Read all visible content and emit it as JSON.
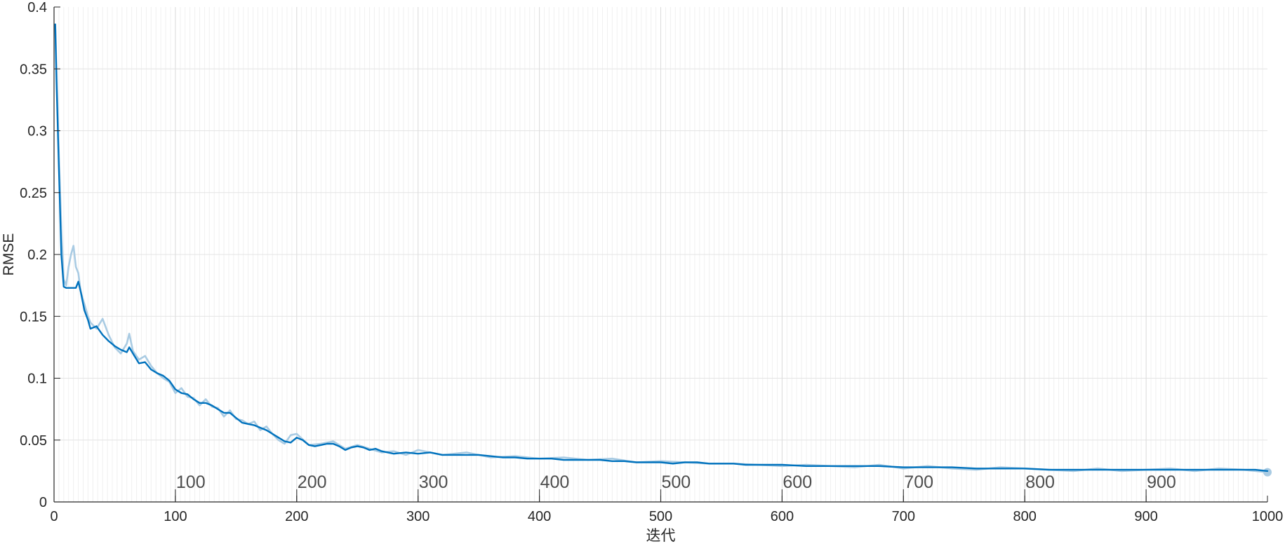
{
  "chart_data": {
    "type": "line",
    "title": "",
    "xlabel": "迭代",
    "ylabel": "RMSE",
    "xlim": [
      0,
      1000
    ],
    "ylim": [
      0,
      0.4
    ],
    "xticks": [
      "0",
      "100",
      "200",
      "300",
      "400",
      "500",
      "600",
      "700",
      "800",
      "900",
      "1000"
    ],
    "yticks": [
      "0",
      "0.05",
      "0.1",
      "0.15",
      "0.2",
      "0.25",
      "0.3",
      "0.35",
      "0.4"
    ],
    "epoch_markers": [
      100,
      200,
      300,
      400,
      500,
      600,
      700,
      800,
      900
    ],
    "epoch_labels": [
      "100",
      "200",
      "300",
      "400",
      "500",
      "600",
      "700",
      "800",
      "900"
    ],
    "grid": true,
    "minor_grid_x_every_iterations": 4,
    "colors": {
      "smoothed": "#0072bd",
      "raw": "#a9cbe3",
      "grid": "#e4e4e4",
      "axis": "#262626"
    },
    "series": [
      {
        "role": "smoothed",
        "x": [
          1,
          2,
          4,
          6,
          8,
          10,
          12,
          15,
          18,
          20,
          22,
          25,
          28,
          30,
          35,
          40,
          45,
          50,
          55,
          60,
          62,
          65,
          70,
          75,
          80,
          85,
          90,
          95,
          100,
          105,
          110,
          115,
          120,
          125,
          130,
          135,
          140,
          145,
          150,
          155,
          160,
          165,
          170,
          175,
          180,
          185,
          190,
          195,
          200,
          205,
          210,
          215,
          220,
          225,
          230,
          235,
          240,
          245,
          250,
          255,
          260,
          265,
          270,
          275,
          280,
          290,
          300,
          310,
          320,
          330,
          340,
          350,
          360,
          370,
          380,
          390,
          400,
          410,
          420,
          430,
          440,
          450,
          460,
          470,
          480,
          490,
          500,
          510,
          520,
          530,
          540,
          550,
          560,
          570,
          580,
          590,
          600,
          620,
          640,
          660,
          680,
          700,
          720,
          740,
          760,
          780,
          800,
          820,
          840,
          860,
          880,
          900,
          920,
          940,
          960,
          980,
          990,
          1000
        ],
        "y": [
          0.386,
          0.34,
          0.27,
          0.2,
          0.174,
          0.173,
          0.173,
          0.173,
          0.173,
          0.178,
          0.17,
          0.155,
          0.147,
          0.14,
          0.142,
          0.135,
          0.13,
          0.126,
          0.123,
          0.121,
          0.125,
          0.12,
          0.112,
          0.113,
          0.107,
          0.104,
          0.102,
          0.098,
          0.091,
          0.088,
          0.087,
          0.083,
          0.08,
          0.08,
          0.078,
          0.075,
          0.072,
          0.072,
          0.068,
          0.064,
          0.063,
          0.062,
          0.06,
          0.058,
          0.055,
          0.052,
          0.049,
          0.048,
          0.052,
          0.05,
          0.046,
          0.045,
          0.046,
          0.047,
          0.047,
          0.045,
          0.042,
          0.044,
          0.045,
          0.044,
          0.042,
          0.043,
          0.041,
          0.04,
          0.039,
          0.04,
          0.039,
          0.04,
          0.038,
          0.038,
          0.038,
          0.038,
          0.037,
          0.036,
          0.036,
          0.035,
          0.035,
          0.035,
          0.034,
          0.034,
          0.034,
          0.034,
          0.033,
          0.033,
          0.032,
          0.032,
          0.032,
          0.031,
          0.032,
          0.032,
          0.031,
          0.031,
          0.031,
          0.03,
          0.03,
          0.03,
          0.03,
          0.029,
          0.029,
          0.029,
          0.029,
          0.028,
          0.028,
          0.028,
          0.027,
          0.027,
          0.027,
          0.026,
          0.026,
          0.026,
          0.026,
          0.026,
          0.026,
          0.026,
          0.026,
          0.026,
          0.026,
          0.025
        ]
      },
      {
        "role": "raw",
        "x": [
          1,
          2,
          4,
          6,
          8,
          10,
          12,
          14,
          16,
          18,
          20,
          22,
          25,
          28,
          30,
          35,
          40,
          45,
          50,
          55,
          60,
          62,
          65,
          70,
          75,
          80,
          85,
          90,
          95,
          100,
          105,
          110,
          115,
          120,
          125,
          130,
          135,
          140,
          145,
          150,
          155,
          160,
          165,
          170,
          175,
          180,
          185,
          190,
          195,
          200,
          210,
          220,
          230,
          240,
          250,
          260,
          270,
          280,
          290,
          300,
          320,
          340,
          360,
          380,
          400,
          420,
          440,
          460,
          480,
          500,
          520,
          540,
          560,
          580,
          600,
          620,
          640,
          660,
          680,
          700,
          720,
          740,
          760,
          780,
          800,
          820,
          840,
          860,
          880,
          900,
          920,
          940,
          960,
          980,
          1000
        ],
        "y": [
          0.385,
          0.35,
          0.28,
          0.22,
          0.18,
          0.175,
          0.19,
          0.2,
          0.207,
          0.19,
          0.185,
          0.17,
          0.16,
          0.15,
          0.145,
          0.14,
          0.148,
          0.135,
          0.125,
          0.12,
          0.128,
          0.136,
          0.122,
          0.115,
          0.118,
          0.11,
          0.104,
          0.1,
          0.097,
          0.088,
          0.092,
          0.085,
          0.084,
          0.078,
          0.083,
          0.077,
          0.076,
          0.069,
          0.074,
          0.067,
          0.066,
          0.063,
          0.065,
          0.058,
          0.061,
          0.055,
          0.05,
          0.047,
          0.054,
          0.055,
          0.046,
          0.047,
          0.049,
          0.043,
          0.046,
          0.043,
          0.04,
          0.041,
          0.038,
          0.042,
          0.038,
          0.04,
          0.036,
          0.037,
          0.035,
          0.036,
          0.034,
          0.035,
          0.032,
          0.033,
          0.032,
          0.031,
          0.031,
          0.03,
          0.029,
          0.03,
          0.029,
          0.028,
          0.03,
          0.027,
          0.029,
          0.027,
          0.026,
          0.028,
          0.027,
          0.026,
          0.025,
          0.027,
          0.025,
          0.026,
          0.027,
          0.025,
          0.027,
          0.026,
          0.024
        ]
      }
    ]
  }
}
